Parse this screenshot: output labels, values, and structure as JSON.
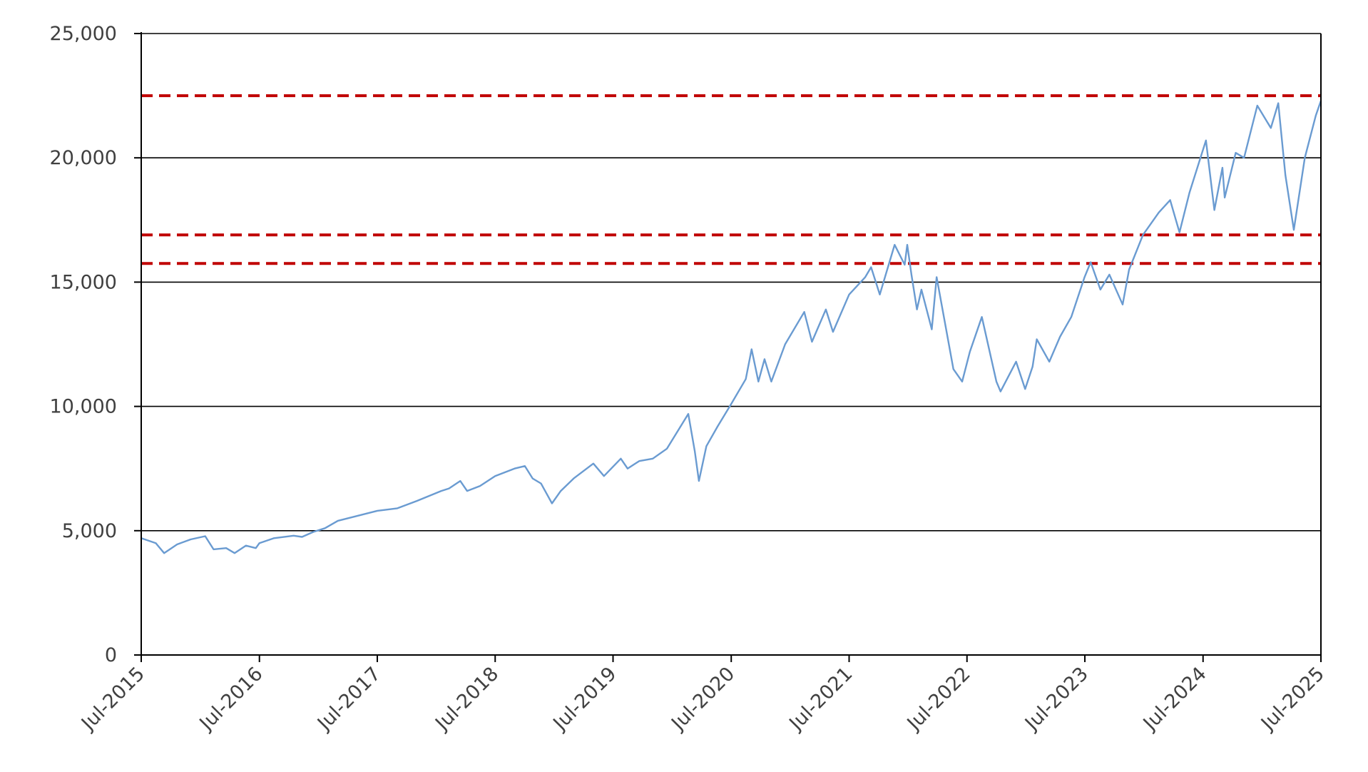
{
  "chart_data": {
    "type": "line",
    "title": "",
    "xlabel": "",
    "ylabel": "",
    "x_range": [
      "2015-07-01",
      "2025-07-01"
    ],
    "ylim": [
      0,
      25000
    ],
    "y_ticks": [
      0,
      5000,
      10000,
      15000,
      20000,
      25000
    ],
    "y_tick_labels": [
      "0",
      "5,000",
      "10,000",
      "15,000",
      "20,000",
      "25,000"
    ],
    "x_ticks": [
      "2015-07-01",
      "2016-07-01",
      "2017-07-01",
      "2018-07-01",
      "2019-07-01",
      "2020-07-01",
      "2021-07-01",
      "2022-07-01",
      "2023-07-01",
      "2024-07-01",
      "2025-07-01"
    ],
    "x_tick_labels": [
      "Jul-2015",
      "Jul-2016",
      "Jul-2017",
      "Jul-2018",
      "Jul-2019",
      "Jul-2020",
      "Jul-2021",
      "Jul-2022",
      "Jul-2023",
      "Jul-2024",
      "Jul-2025"
    ],
    "grid": "horizontal",
    "legend": "none",
    "series": [
      {
        "color": "#6a9bd1",
        "points": [
          [
            "2015-07-01",
            4700
          ],
          [
            "2015-08-15",
            4500
          ],
          [
            "2015-09-10",
            4100
          ],
          [
            "2015-10-20",
            4450
          ],
          [
            "2015-12-01",
            4650
          ],
          [
            "2016-01-15",
            4780
          ],
          [
            "2016-02-10",
            4250
          ],
          [
            "2016-03-20",
            4300
          ],
          [
            "2016-04-15",
            4100
          ],
          [
            "2016-05-20",
            4400
          ],
          [
            "2016-06-20",
            4300
          ],
          [
            "2016-07-01",
            4500
          ],
          [
            "2016-08-15",
            4700
          ],
          [
            "2016-10-15",
            4800
          ],
          [
            "2016-11-10",
            4750
          ],
          [
            "2016-12-15",
            4950
          ],
          [
            "2017-01-20",
            5100
          ],
          [
            "2017-03-01",
            5400
          ],
          [
            "2017-05-01",
            5600
          ],
          [
            "2017-07-01",
            5800
          ],
          [
            "2017-09-01",
            5900
          ],
          [
            "2017-11-01",
            6200
          ],
          [
            "2018-01-15",
            6600
          ],
          [
            "2018-02-08",
            6700
          ],
          [
            "2018-03-15",
            7000
          ],
          [
            "2018-04-05",
            6600
          ],
          [
            "2018-05-15",
            6800
          ],
          [
            "2018-07-01",
            7200
          ],
          [
            "2018-08-30",
            7500
          ],
          [
            "2018-10-01",
            7600
          ],
          [
            "2018-10-25",
            7100
          ],
          [
            "2018-11-20",
            6900
          ],
          [
            "2018-12-24",
            6100
          ],
          [
            "2019-01-20",
            6600
          ],
          [
            "2019-03-01",
            7100
          ],
          [
            "2019-05-01",
            7700
          ],
          [
            "2019-06-03",
            7200
          ],
          [
            "2019-07-25",
            7900
          ],
          [
            "2019-08-15",
            7500
          ],
          [
            "2019-09-20",
            7800
          ],
          [
            "2019-11-01",
            7900
          ],
          [
            "2019-12-15",
            8300
          ],
          [
            "2020-02-19",
            9700
          ],
          [
            "2020-03-10",
            8200
          ],
          [
            "2020-03-23",
            7000
          ],
          [
            "2020-04-15",
            8400
          ],
          [
            "2020-05-20",
            9200
          ],
          [
            "2020-07-01",
            10100
          ],
          [
            "2020-08-15",
            11100
          ],
          [
            "2020-09-02",
            12300
          ],
          [
            "2020-09-23",
            11000
          ],
          [
            "2020-10-12",
            11900
          ],
          [
            "2020-11-02",
            11000
          ],
          [
            "2020-12-15",
            12500
          ],
          [
            "2021-02-12",
            13800
          ],
          [
            "2021-03-08",
            12600
          ],
          [
            "2021-04-20",
            13900
          ],
          [
            "2021-05-12",
            13000
          ],
          [
            "2021-07-01",
            14500
          ],
          [
            "2021-08-20",
            15200
          ],
          [
            "2021-09-07",
            15600
          ],
          [
            "2021-10-04",
            14500
          ],
          [
            "2021-11-19",
            16500
          ],
          [
            "2021-12-20",
            15700
          ],
          [
            "2021-12-28",
            16500
          ],
          [
            "2022-01-10",
            15300
          ],
          [
            "2022-01-27",
            13900
          ],
          [
            "2022-02-10",
            14700
          ],
          [
            "2022-03-14",
            13100
          ],
          [
            "2022-03-29",
            15200
          ],
          [
            "2022-05-20",
            11500
          ],
          [
            "2022-06-16",
            11000
          ],
          [
            "2022-07-10",
            12200
          ],
          [
            "2022-08-16",
            13600
          ],
          [
            "2022-09-30",
            11000
          ],
          [
            "2022-10-13",
            10600
          ],
          [
            "2022-11-30",
            11800
          ],
          [
            "2022-12-28",
            10700
          ],
          [
            "2023-01-20",
            11600
          ],
          [
            "2023-02-02",
            12700
          ],
          [
            "2023-03-13",
            11800
          ],
          [
            "2023-04-15",
            12800
          ],
          [
            "2023-05-20",
            13600
          ],
          [
            "2023-06-30",
            15200
          ],
          [
            "2023-07-19",
            15800
          ],
          [
            "2023-08-18",
            14700
          ],
          [
            "2023-09-15",
            15300
          ],
          [
            "2023-10-26",
            14100
          ],
          [
            "2023-11-15",
            15500
          ],
          [
            "2023-12-28",
            16900
          ],
          [
            "2024-02-15",
            17800
          ],
          [
            "2024-03-21",
            18300
          ],
          [
            "2024-04-19",
            17000
          ],
          [
            "2024-05-20",
            18600
          ],
          [
            "2024-07-10",
            20700
          ],
          [
            "2024-08-05",
            17900
          ],
          [
            "2024-08-30",
            19600
          ],
          [
            "2024-09-06",
            18400
          ],
          [
            "2024-10-10",
            20200
          ],
          [
            "2024-11-05",
            20000
          ],
          [
            "2024-12-16",
            22100
          ],
          [
            "2025-01-27",
            21200
          ],
          [
            "2025-02-19",
            22200
          ],
          [
            "2025-03-13",
            19300
          ],
          [
            "2025-04-08",
            17100
          ],
          [
            "2025-05-12",
            20000
          ],
          [
            "2025-06-15",
            21700
          ],
          [
            "2025-07-01",
            22300
          ]
        ]
      }
    ],
    "reference_lines": [
      {
        "y": 22500,
        "color": "#c00000",
        "style": "dashed"
      },
      {
        "y": 16900,
        "color": "#c00000",
        "style": "dashed"
      },
      {
        "y": 15750,
        "color": "#c00000",
        "style": "dashed"
      }
    ]
  }
}
